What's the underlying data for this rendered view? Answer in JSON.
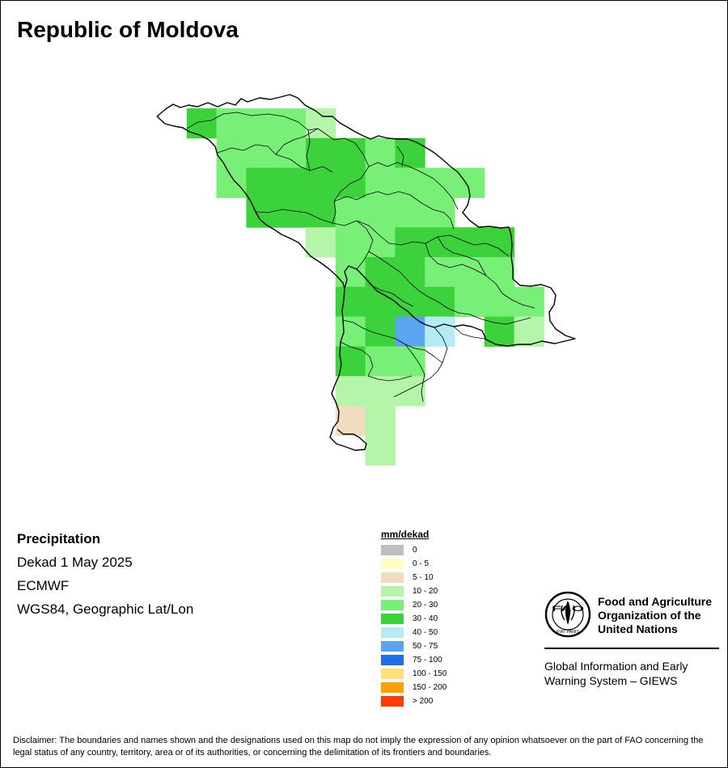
{
  "map": {
    "title": "Republic of Moldova",
    "grid_cells": [
      {
        "row": 0,
        "cols": [
          5,
          6,
          7,
          8,
          9,
          10
        ],
        "class": "20 - 30"
      },
      {
        "row": 0,
        "cols": [
          1,
          2
        ],
        "class": "30 - 40"
      }
    ]
  },
  "info": {
    "variable": "Precipitation",
    "period": "Dekad 1 May 2025",
    "source": "ECMWF",
    "projection": "WGS84, Geographic Lat/Lon"
  },
  "legend": {
    "title": "mm/dekad",
    "items": [
      {
        "label": "0",
        "color": "#bebebe"
      },
      {
        "label": "0 - 5",
        "color": "#ffffc8"
      },
      {
        "label": "5 - 10",
        "color": "#f0dcbe"
      },
      {
        "label": "10 - 20",
        "color": "#b4f5aa"
      },
      {
        "label": "20 - 30",
        "color": "#78f078"
      },
      {
        "label": "30 - 40",
        "color": "#3cd23c"
      },
      {
        "label": "40 - 50",
        "color": "#b4ebf5"
      },
      {
        "label": "50 - 75",
        "color": "#5aa5f0"
      },
      {
        "label": "75 - 100",
        "color": "#1e6ee6"
      },
      {
        "label": "100 - 150",
        "color": "#ffe178"
      },
      {
        "label": "150 - 200",
        "color": "#ffa000"
      },
      {
        "label": "> 200",
        "color": "#ff3c00"
      }
    ]
  },
  "fao": {
    "name_line1": "Food and Agriculture",
    "name_line2": "Organization of the",
    "name_line3": "United Nations",
    "giews_line1": "Global Information and Early",
    "giews_line2": "Warning System – GIEWS",
    "logo_text_top": "FAO",
    "logo_text_bottom": "FIAT PANIS"
  },
  "disclaimer": "Disclaimer: The boundaries and names shown and the designations used on this map do not imply the expression of any opinion whatsoever on the part of FAO concerning the legal status of any country, territory, area or of its authorities, or concerning the delimitation of its frontiers and boundaries."
}
